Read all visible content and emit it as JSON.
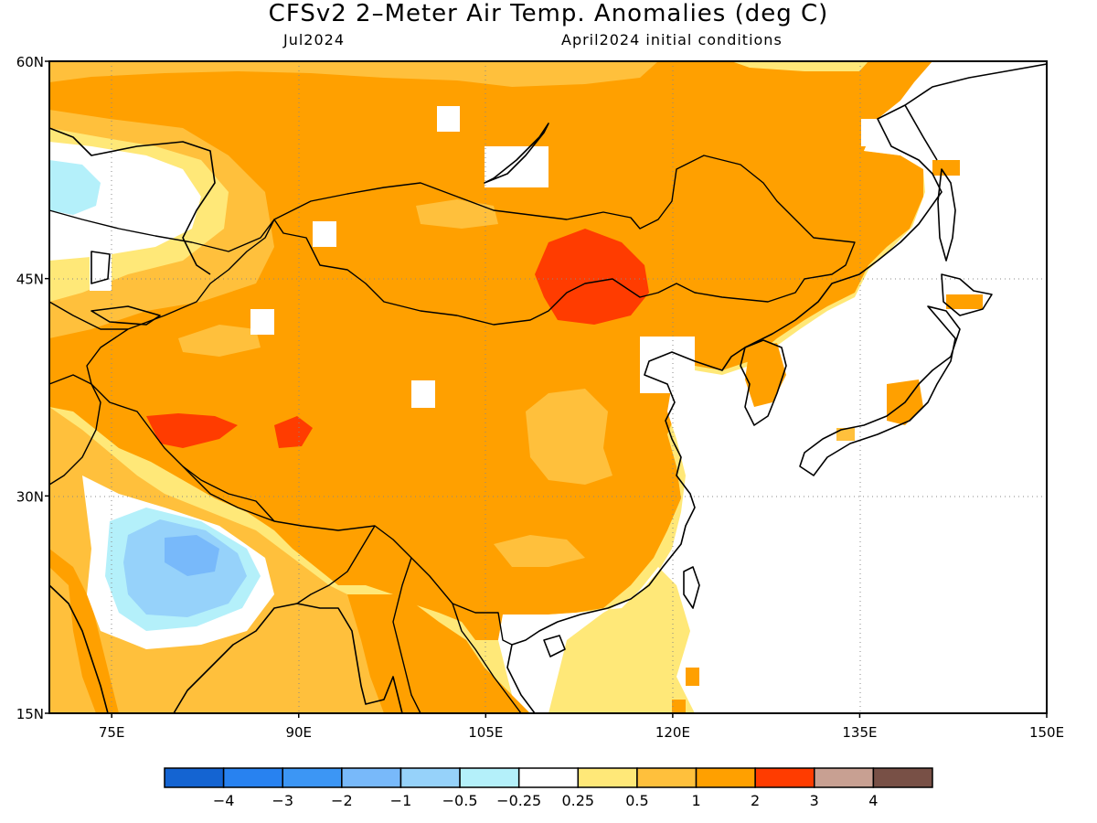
{
  "title": "CFSv2 2–Meter Air Temp. Anomalies (deg C)",
  "subtitle_left": "Jul2024",
  "subtitle_right": "April2024 initial conditions",
  "map": {
    "lon_range": [
      70,
      150
    ],
    "lat_range": [
      15,
      60
    ],
    "lon_ticks": [
      {
        "value": 75,
        "label": "75E"
      },
      {
        "value": 90,
        "label": "90E"
      },
      {
        "value": 105,
        "label": "105E"
      },
      {
        "value": 120,
        "label": "120E"
      },
      {
        "value": 135,
        "label": "135E"
      },
      {
        "value": 150,
        "label": "150E"
      }
    ],
    "lat_ticks": [
      {
        "value": 60,
        "label": "60N"
      },
      {
        "value": 45,
        "label": "45N"
      },
      {
        "value": 30,
        "label": "30N"
      },
      {
        "value": 15,
        "label": "15N"
      }
    ],
    "gridlines": "dotted"
  },
  "colorbar": {
    "colors": [
      "#1464d2",
      "#2882f0",
      "#3c96f5",
      "#78b9fa",
      "#96d2fa",
      "#b4f0fa",
      "#ffffff",
      "#ffe878",
      "#ffc03c",
      "#ffa000",
      "#ff3c00",
      "#c8a092",
      "#785046"
    ],
    "labels": [
      "−4",
      "−3",
      "−2",
      "−1",
      "−0.5",
      "−0.25",
      "0.25",
      "0.5",
      "1",
      "2",
      "3",
      "4"
    ]
  },
  "colors": {
    "anom_0_25": "#ffe878",
    "anom_0_5": "#ffc03c",
    "anom_1": "#ffa000",
    "anom_2": "#ff3c00",
    "anom_neg_0_25": "#b4f0fa",
    "anom_neg_0_5": "#96d2fa",
    "anom_neg_1": "#78b9fa"
  }
}
